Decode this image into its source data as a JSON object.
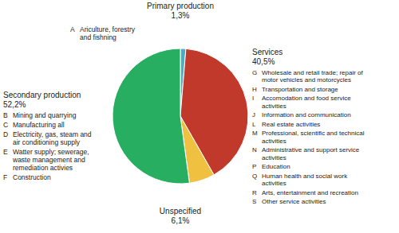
{
  "chart_data": {
    "type": "pie",
    "categories": [
      "Primary production",
      "Services",
      "Unspecified",
      "Secondary production"
    ],
    "values": [
      1.3,
      40.5,
      6.1,
      52.2
    ],
    "value_labels": [
      "1,3%",
      "40,5%",
      "6,1%",
      "52,2%"
    ],
    "colors": [
      "#4bacc6",
      "#c0392b",
      "#f0c040",
      "#27ae60"
    ],
    "annotations": [
      [
        {
          "letter": "A",
          "lines": [
            "Ariculture, forestry",
            "and fishning"
          ]
        }
      ],
      [
        {
          "letter": "G",
          "lines": [
            "Wholesale and retail trade; repair of",
            "motor vehicles and motorcycles"
          ]
        },
        {
          "letter": "H",
          "lines": [
            "Transportation and storage"
          ]
        },
        {
          "letter": "I",
          "lines": [
            "Accomodation and food service",
            "activities"
          ]
        },
        {
          "letter": "J",
          "lines": [
            "Information and communication"
          ]
        },
        {
          "letter": "L",
          "lines": [
            "Real estate activities"
          ]
        },
        {
          "letter": "M",
          "lines": [
            "Professional, scientific and technical",
            "activities"
          ]
        },
        {
          "letter": "N",
          "lines": [
            "Administrative and support service",
            "activities"
          ]
        },
        {
          "letter": "P",
          "lines": [
            "Education"
          ]
        },
        {
          "letter": "Q",
          "lines": [
            "Human health and social work",
            "activities"
          ]
        },
        {
          "letter": "R",
          "lines": [
            "Arts, entertainment and recreation"
          ]
        },
        {
          "letter": "S",
          "lines": [
            "Other service activities"
          ]
        }
      ],
      [],
      [
        {
          "letter": "B",
          "lines": [
            "Mining and quarrying"
          ]
        },
        {
          "letter": "C",
          "lines": [
            "Manufacturing all"
          ]
        },
        {
          "letter": "D",
          "lines": [
            "Electricity, gas, steam and",
            "air conditioning supply"
          ]
        },
        {
          "letter": "E",
          "lines": [
            "Watter supply; sewerage,",
            "waste management and",
            "remediation activies"
          ]
        },
        {
          "letter": "F",
          "lines": [
            "Construction"
          ]
        }
      ]
    ]
  }
}
